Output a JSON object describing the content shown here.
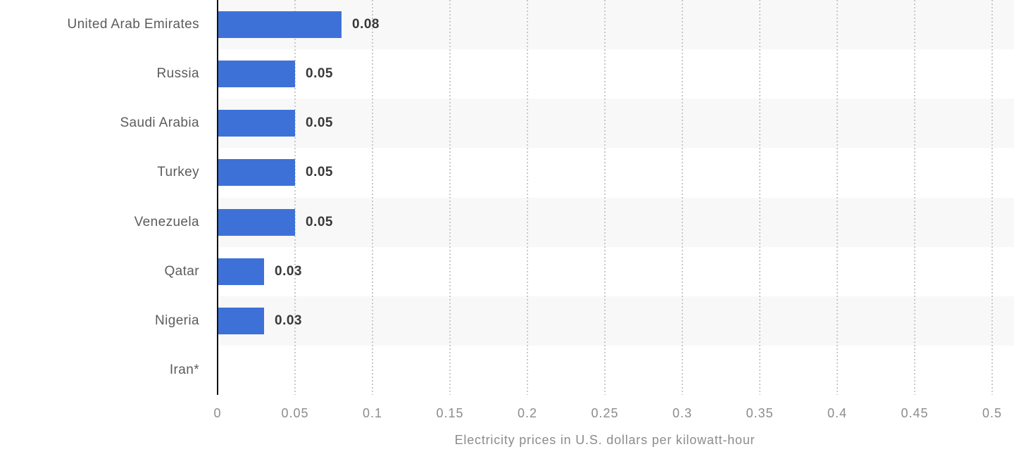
{
  "chart_data": {
    "type": "bar",
    "orientation": "horizontal",
    "categories": [
      "United Arab Emirates",
      "Russia",
      "Saudi Arabia",
      "Turkey",
      "Venezuela",
      "Qatar",
      "Nigeria",
      "Iran*"
    ],
    "values": [
      0.08,
      0.05,
      0.05,
      0.05,
      0.05,
      0.03,
      0.03,
      0
    ],
    "value_labels": [
      "0.08",
      "0.05",
      "0.05",
      "0.05",
      "0.05",
      "0.03",
      "0.03",
      ""
    ],
    "title": "",
    "xlabel": "Electricity prices in U.S. dollars per kilowatt-hour",
    "ylabel": "",
    "xlim": [
      0,
      0.5
    ],
    "xticks": [
      0,
      0.05,
      0.1,
      0.15,
      0.2,
      0.25,
      0.3,
      0.35,
      0.4,
      0.45,
      0.5
    ],
    "xtick_labels": [
      "0",
      "0.05",
      "0.1",
      "0.15",
      "0.2",
      "0.25",
      "0.3",
      "0.35",
      "0.4",
      "0.45",
      "0.5"
    ],
    "grid": "vertical-dotted",
    "legend": "none",
    "row_banding": "alternating, first row shaded",
    "colors": {
      "bar": "#3e71d8",
      "band": "#f8f8f8",
      "grid": "#c9c9c9",
      "axis": "#101010",
      "category_label": "#5c5c5c",
      "value_label": "#383838",
      "tick_label": "#8c8c8c",
      "axis_label": "#8c8c8c",
      "background": "#ffffff"
    }
  }
}
